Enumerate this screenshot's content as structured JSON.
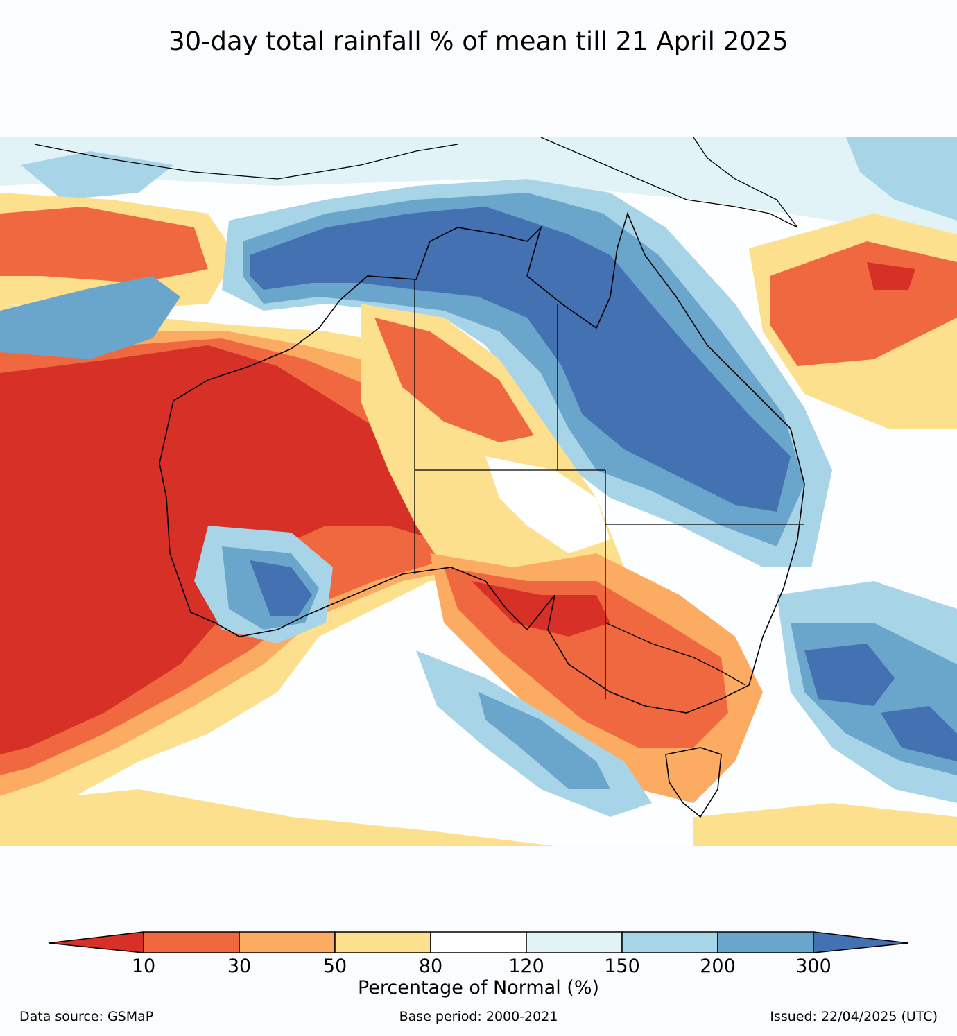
{
  "title": "30-day total rainfall % of mean till 21 April 2025",
  "legend": {
    "label": "Percentage of Normal (%)",
    "ticks": [
      "10",
      "30",
      "50",
      "80",
      "120",
      "150",
      "200",
      "300"
    ],
    "bins": [
      {
        "range": "<10",
        "color": "#d73027"
      },
      {
        "range": "10-30",
        "color": "#f06840"
      },
      {
        "range": "30-50",
        "color": "#fbac62"
      },
      {
        "range": "50-80",
        "color": "#fde08e"
      },
      {
        "range": "80-120",
        "color": "#ffffff"
      },
      {
        "range": "120-150",
        "color": "#e2f3f8"
      },
      {
        "range": "150-200",
        "color": "#a8d4e8"
      },
      {
        "range": "200-300",
        "color": "#6aa5cc"
      },
      {
        "range": ">300",
        "color": "#4471b2"
      }
    ]
  },
  "footer": {
    "source": "Data source: GSMaP",
    "base_period": "Base period: 2000-2021",
    "issued": "Issued: 22/04/2025 (UTC)"
  },
  "map": {
    "region": "Australia",
    "palette": {
      "extreme_low": "#d73027",
      "very_low": "#f06840",
      "low": "#fbac62",
      "below": "#fde08e",
      "normal": "#ffffff",
      "above": "#e2f3f8",
      "high": "#a8d4e8",
      "very_high": "#6aa5cc",
      "extreme_high": "#4471b2"
    }
  }
}
